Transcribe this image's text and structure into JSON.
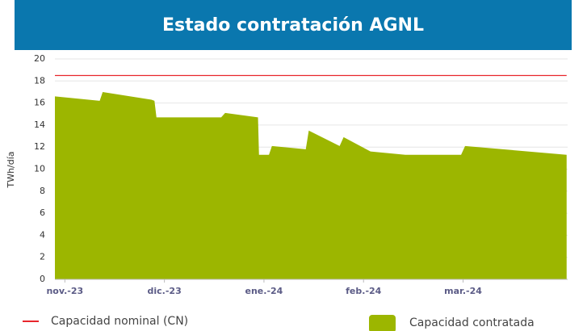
{
  "chart_data": {
    "type": "area",
    "title": "Estado contratación AGNL",
    "y_label": "TWh/día",
    "ylim": [
      0,
      20
    ],
    "yticks": [
      0,
      2,
      4,
      6,
      8,
      10,
      12,
      14,
      16,
      18,
      20
    ],
    "xlim": [
      -0.1,
      5.05
    ],
    "xticks": [
      {
        "value": 0,
        "label": "nov.-23"
      },
      {
        "value": 1,
        "label": "dic.-23"
      },
      {
        "value": 2,
        "label": "ene.-24"
      },
      {
        "value": 3,
        "label": "feb.-24"
      },
      {
        "value": 4,
        "label": "mar.-24"
      }
    ],
    "grid": true,
    "series": [
      {
        "name": "Capacidad nominal (CN)",
        "type": "line",
        "color": "#e8262c",
        "x": [
          -0.1,
          5.04
        ],
        "values": [
          18.5,
          18.5
        ]
      },
      {
        "name": "Capacidad contratada",
        "type": "area",
        "color": "#9cb600",
        "x": [
          -0.1,
          0.35,
          0.38,
          0.87,
          0.9,
          0.92,
          1.57,
          1.61,
          1.94,
          1.95,
          2.05,
          2.08,
          2.42,
          2.45,
          2.76,
          2.8,
          3.07,
          3.42,
          3.98,
          4.02,
          5.04
        ],
        "values": [
          16.6,
          16.2,
          17.0,
          16.3,
          16.2,
          14.7,
          14.7,
          15.1,
          14.7,
          11.3,
          11.3,
          12.1,
          11.8,
          13.5,
          12.1,
          12.9,
          11.6,
          11.3,
          11.3,
          12.1,
          11.3
        ]
      }
    ]
  }
}
